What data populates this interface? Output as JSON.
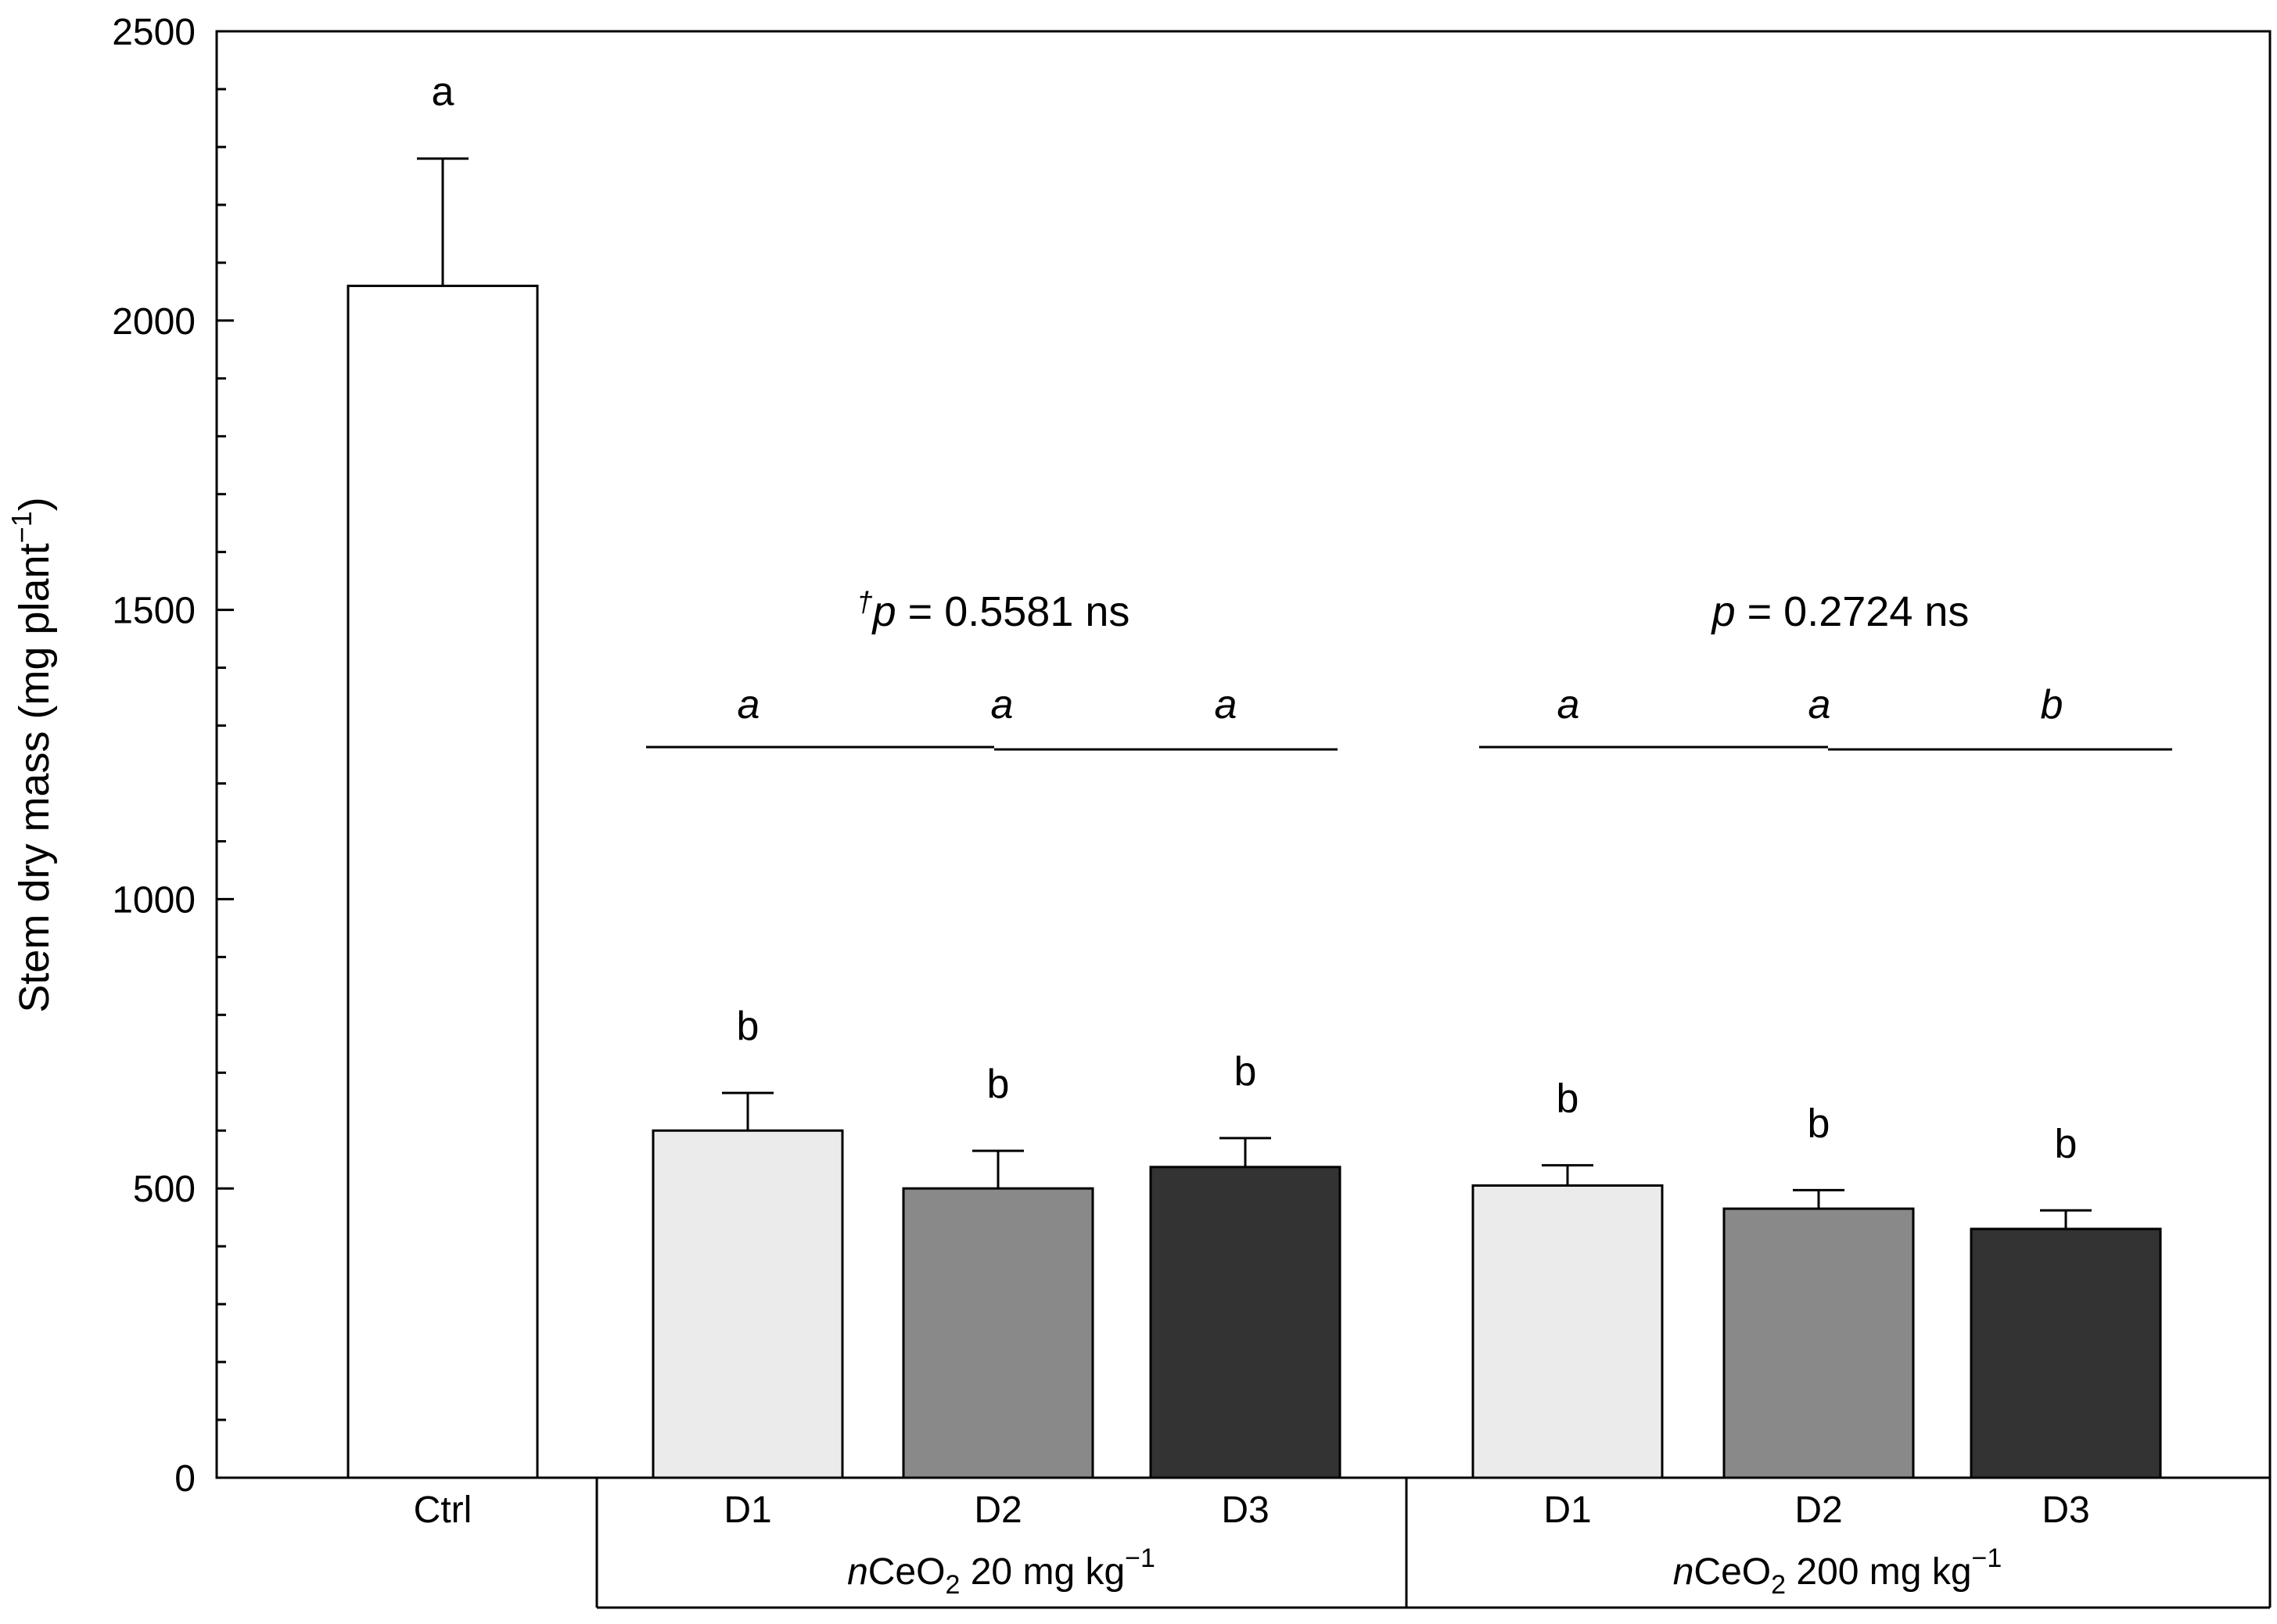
{
  "chart_data": {
    "type": "bar",
    "ylabel": "Stem dry mass (mg plant",
    "ylabel_sup": "−1",
    "ylabel_close": ")",
    "ylim": [
      0,
      2500
    ],
    "yticks": [
      "0",
      "500",
      "1000",
      "1500",
      "2000",
      "2500"
    ],
    "bars": [
      {
        "category": "Ctrl",
        "group": "control",
        "value": 2060,
        "error": 220,
        "letter": "a",
        "fill": "#ffffff"
      },
      {
        "category": "D1",
        "group": "nCeO2 20 mg kg-1",
        "value": 600,
        "error": 65,
        "letter": "b",
        "fill": "#ebebeb"
      },
      {
        "category": "D2",
        "group": "nCeO2 20 mg kg-1",
        "value": 500,
        "error": 65,
        "letter": "b",
        "fill": "#898989"
      },
      {
        "category": "D3",
        "group": "nCeO2 20 mg kg-1",
        "value": 537,
        "error": 50,
        "letter": "b",
        "fill": "#333333"
      },
      {
        "category": "D1",
        "group": "nCeO2 200 mg kg-1",
        "value": 505,
        "error": 35,
        "letter": "b",
        "fill": "#ebebeb"
      },
      {
        "category": "D2",
        "group": "nCeO2 200 mg kg-1",
        "value": 465,
        "error": 32,
        "letter": "b",
        "fill": "#898989"
      },
      {
        "category": "D3",
        "group": "nCeO2 200 mg kg-1",
        "value": 430,
        "error": 32,
        "letter": "b",
        "fill": "#333333"
      }
    ],
    "groups": [
      {
        "label_prefix": "n",
        "label_main": "CeO",
        "label_sub": "2",
        "label_rest": " 20 mg kg",
        "label_sup": "−1",
        "within_letters": [
          "a",
          "a",
          "a"
        ],
        "p_dagger": "†",
        "p_symbol": "p",
        "p_text": " = 0.5581 ns"
      },
      {
        "label_prefix": "n",
        "label_main": "CeO",
        "label_sub": "2",
        "label_rest": " 200 mg kg",
        "label_sup": "−1",
        "within_letters": [
          "a",
          "a",
          "b"
        ],
        "p_dagger": "",
        "p_symbol": "p",
        "p_text": " = 0.2724 ns"
      }
    ]
  }
}
